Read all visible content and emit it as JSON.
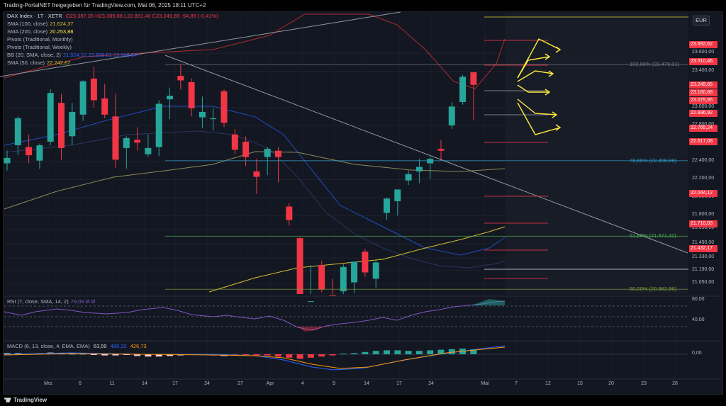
{
  "header": {
    "title": "Trading-PortalNET freigegeben für TradingView.com, Mai 06, 2025 18:11 UTC+2"
  },
  "legend": {
    "symbol": "DAX Index · 1T · XETR",
    "ohlc": "O23.387,35  H23.389,86  L22.861,40  C23.249,65  -94,89 (-0,41%)",
    "sma100_label": "SMA (100, close)",
    "sma100_value": "21.624,37",
    "sma200_label": "SMA (200, close)",
    "sma200_value": "20.253,88",
    "pivots_monthly": "Pivots (Traditional, Monthly)",
    "pivots_weekly": "Pivots (Traditional, Weekly)",
    "bb_label": "BB (20, SMA, close, 2)",
    "bb_values": "21.524,12  23.699,61  19.348,64",
    "sma50_label": "SMA (50, close)",
    "sma50_value": "22.242,67",
    "rsi_label": "RSI (7, close, SMA, 14, 2)",
    "rsi_value": "79,09  Ø  Ø",
    "macd_label": "MACD (6, 13, close, 4, EMA, EMA)",
    "macd_values": [
      "63,59",
      "490,32",
      "426,73"
    ]
  },
  "currency": "EUR",
  "colors": {
    "up": "#26a69a",
    "down": "#f23645",
    "bg": "#131722",
    "sma100": "#d4c22c",
    "sma50": "#8d8a55",
    "bb": "#2962ff",
    "bb_outer": "#f23645",
    "rsi": "#7e57c2",
    "arrows": "#ffeb3b"
  },
  "fib_levels": [
    {
      "label": "100,00% (23.476,01)",
      "price": 23476.01,
      "color": "#787b86"
    },
    {
      "label": "78,60% (22.408,98)",
      "price": 22408.98,
      "color": "#2f9bc6"
    },
    {
      "label": "61,80% (21.571,32)",
      "price": 21571.32,
      "color": "#4caf50"
    },
    {
      "label": "50,00% (20.982,96)",
      "price": 20982.96,
      "color": "#7a9b3a"
    }
  ],
  "price_labels": [
    {
      "text": "23.692,62",
      "price": 23692.62,
      "color": "#f23645"
    },
    {
      "text": "23.510,46",
      "price": 23510.46,
      "color": "#f23645"
    },
    {
      "text": "23.249,65",
      "price": 23249.65,
      "color": "#f23645"
    },
    {
      "text": "23.160,88",
      "price": 23160.88,
      "color": "#f23645"
    },
    {
      "text": "23.075,95",
      "price": 23075.95,
      "color": "#f23645"
    },
    {
      "text": "22.936,92",
      "price": 22936.92,
      "color": "#f23645"
    },
    {
      "text": "22.765,24",
      "price": 22765.24,
      "color": "#f23645"
    },
    {
      "text": "22.617,08",
      "price": 22617.08,
      "color": "#f23645"
    },
    {
      "text": "22.044,12",
      "price": 22044.12,
      "color": "#f23645"
    },
    {
      "text": "21.710,03",
      "price": 21710.03,
      "color": "#f23645"
    },
    {
      "text": "21.432,17",
      "price": 21432.17,
      "color": "#f23645"
    }
  ],
  "footer": {
    "brand": "TradingView"
  },
  "chart_data": {
    "type": "candlestick",
    "y_ticks": [
      "23.600,00",
      "23.400,00",
      "23.000,00",
      "22.800,00",
      "22.400,00",
      "22.200,00",
      "22.000,00",
      "21.800,00",
      "21.650,00",
      "21.490,00",
      "21.330,00",
      "21.190,00",
      "21.050,00"
    ],
    "y_tick_values": [
      23600,
      23400,
      23000,
      22800,
      22400,
      22200,
      22000,
      21800,
      21650,
      21490,
      21330,
      21190,
      21050
    ],
    "ylim": [
      20930,
      24050
    ],
    "x_ticks": [
      "Mrz",
      "6",
      "11",
      "14",
      "17",
      "24",
      "27",
      "Apr",
      "4",
      "9",
      "14",
      "17",
      "24",
      "Mai",
      "7",
      "12",
      "15",
      "20",
      "23",
      "28"
    ],
    "candles": [
      {
        "o": 22380,
        "h": 22520,
        "l": 22300,
        "c": 22440
      },
      {
        "o": 22580,
        "h": 22900,
        "l": 22470,
        "c": 22880
      },
      {
        "o": 22560,
        "h": 22700,
        "l": 22380,
        "c": 22470
      },
      {
        "o": 22410,
        "h": 22600,
        "l": 22320,
        "c": 22580
      },
      {
        "o": 22620,
        "h": 23200,
        "l": 22580,
        "c": 23160
      },
      {
        "o": 23050,
        "h": 23150,
        "l": 22420,
        "c": 22550
      },
      {
        "o": 22680,
        "h": 23050,
        "l": 22580,
        "c": 22950
      },
      {
        "o": 22920,
        "h": 23300,
        "l": 22850,
        "c": 23290
      },
      {
        "o": 23320,
        "h": 23450,
        "l": 23000,
        "c": 23080
      },
      {
        "o": 23100,
        "h": 23260,
        "l": 22880,
        "c": 22920
      },
      {
        "o": 22900,
        "h": 23150,
        "l": 22330,
        "c": 22420
      },
      {
        "o": 22550,
        "h": 22680,
        "l": 22320,
        "c": 22660
      },
      {
        "o": 22640,
        "h": 22780,
        "l": 22520,
        "c": 22610
      },
      {
        "o": 22480,
        "h": 22700,
        "l": 22450,
        "c": 22550
      },
      {
        "o": 22560,
        "h": 23080,
        "l": 22460,
        "c": 23040
      },
      {
        "o": 23090,
        "h": 23220,
        "l": 22870,
        "c": 23130
      },
      {
        "o": 23350,
        "h": 23470,
        "l": 23200,
        "c": 23300
      },
      {
        "o": 23280,
        "h": 23320,
        "l": 22900,
        "c": 22990
      },
      {
        "o": 22890,
        "h": 23120,
        "l": 22770,
        "c": 22950
      },
      {
        "o": 22870,
        "h": 22990,
        "l": 22740,
        "c": 22880
      },
      {
        "o": 23180,
        "h": 23200,
        "l": 22780,
        "c": 22830
      },
      {
        "o": 22700,
        "h": 22760,
        "l": 22480,
        "c": 22530
      },
      {
        "o": 22620,
        "h": 22680,
        "l": 22350,
        "c": 22450
      },
      {
        "o": 22290,
        "h": 22430,
        "l": 22040,
        "c": 22230
      },
      {
        "o": 22450,
        "h": 22560,
        "l": 22250,
        "c": 22540
      },
      {
        "o": 22520,
        "h": 22560,
        "l": 22170,
        "c": 22450
      },
      {
        "o": 21900,
        "h": 21940,
        "l": 21690,
        "c": 21750
      },
      {
        "o": 21550,
        "h": 21560,
        "l": 20200,
        "c": 20480
      },
      {
        "o": 20800,
        "h": 21250,
        "l": 20550,
        "c": 20850
      },
      {
        "o": 21250,
        "h": 21300,
        "l": 20950,
        "c": 20980
      },
      {
        "o": 20920,
        "h": 21100,
        "l": 20750,
        "c": 20890
      },
      {
        "o": 20960,
        "h": 21260,
        "l": 20920,
        "c": 21230
      },
      {
        "o": 21060,
        "h": 21290,
        "l": 20940,
        "c": 21290
      },
      {
        "o": 21400,
        "h": 21430,
        "l": 21120,
        "c": 21170
      },
      {
        "o": 21100,
        "h": 21300,
        "l": 21000,
        "c": 21280
      },
      {
        "o": 21830,
        "h": 22000,
        "l": 21750,
        "c": 21990
      },
      {
        "o": 21960,
        "h": 22070,
        "l": 21800,
        "c": 22090
      },
      {
        "o": 22190,
        "h": 22300,
        "l": 22140,
        "c": 22260
      },
      {
        "o": 22290,
        "h": 22430,
        "l": 22160,
        "c": 22340
      },
      {
        "o": 22380,
        "h": 22450,
        "l": 22210,
        "c": 22430
      },
      {
        "o": 22540,
        "h": 22640,
        "l": 22410,
        "c": 22520
      },
      {
        "o": 22800,
        "h": 23060,
        "l": 22760,
        "c": 23010
      },
      {
        "o": 23060,
        "h": 23360,
        "l": 23030,
        "c": 23340
      },
      {
        "o": 23390,
        "h": 23390,
        "l": 22860,
        "c": 23250
      }
    ]
  }
}
